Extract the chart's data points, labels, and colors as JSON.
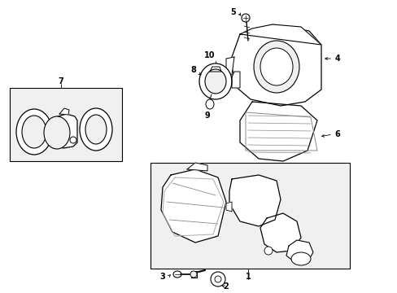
{
  "bg_color": "#ffffff",
  "box_fill": "#f0f0f0",
  "line_color": "#000000",
  "lw": 0.8,
  "fig_w": 4.89,
  "fig_h": 3.6,
  "dpi": 100
}
